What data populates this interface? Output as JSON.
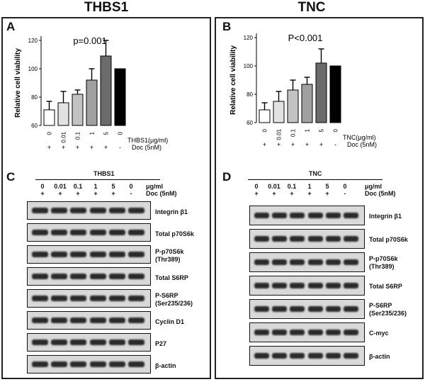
{
  "headers": {
    "left": "THBS1",
    "right": "TNC"
  },
  "panel_labels": {
    "A": "A",
    "B": "B",
    "C": "C",
    "D": "D"
  },
  "chart_data": [
    {
      "type": "bar",
      "panel": "A",
      "annotation": "p=0.001",
      "ylabel": "Relative cell viability",
      "ylim": [
        60,
        120
      ],
      "yticks": [
        "60",
        "80",
        "100",
        "120"
      ],
      "categories": [
        "0",
        "0.01",
        "0.1",
        "1",
        "5",
        "0"
      ],
      "values": [
        71,
        76,
        82,
        92,
        109,
        100
      ],
      "errors": [
        6,
        8,
        3,
        8,
        11,
        0
      ],
      "colors": [
        "#ffffff",
        "#e2e2e2",
        "#c2c2c2",
        "#a0a0a0",
        "#6b6b6b",
        "#000000"
      ],
      "row1_label": "THBS1(μg/ml)",
      "row2_label": "Doc (5nM)",
      "row2_signs": [
        "+",
        "+",
        "+",
        "+",
        "+",
        "-"
      ]
    },
    {
      "type": "bar",
      "panel": "B",
      "annotation": "P<0.001",
      "ylabel": "Relative cell viability",
      "ylim": [
        60,
        120
      ],
      "yticks": [
        "60",
        "80",
        "100",
        "120"
      ],
      "categories": [
        "0",
        "0.01",
        "0.1",
        "1",
        "5",
        "0"
      ],
      "values": [
        69,
        75,
        83,
        87,
        102,
        100
      ],
      "errors": [
        5,
        7,
        7,
        5,
        10,
        0
      ],
      "colors": [
        "#ffffff",
        "#e2e2e2",
        "#c2c2c2",
        "#a0a0a0",
        "#6b6b6b",
        "#000000"
      ],
      "row1_label": "TNC(μg/ml)",
      "row2_label": "Doc (5nM)",
      "row2_signs": [
        "+",
        "+",
        "+",
        "+",
        "+",
        "-"
      ]
    }
  ],
  "blots": {
    "C": {
      "title": "THBS1",
      "conc": [
        "0",
        "0.01",
        "0.1",
        "1",
        "5",
        "0"
      ],
      "unit": "μg/ml",
      "signs": [
        "+",
        "+",
        "+",
        "+",
        "+",
        "-"
      ],
      "doc": "Doc (5nM)",
      "rows": [
        {
          "label": "Integrin β1",
          "sublabel": ""
        },
        {
          "label": "Total p70S6k",
          "sublabel": ""
        },
        {
          "label": "P-p70S6k",
          "sublabel": "(Thr389)"
        },
        {
          "label": "Total S6RP",
          "sublabel": ""
        },
        {
          "label": "P-S6RP",
          "sublabel": "(Ser235/236)"
        },
        {
          "label": "Cyclin D1",
          "sublabel": ""
        },
        {
          "label": "P27",
          "sublabel": ""
        },
        {
          "label": "β-actin",
          "sublabel": ""
        }
      ]
    },
    "D": {
      "title": "TNC",
      "conc": [
        "0",
        "0.01",
        "0.1",
        "1",
        "5",
        "0"
      ],
      "unit": "μg/ml",
      "signs": [
        "+",
        "+",
        "+",
        "+",
        "+",
        "-"
      ],
      "doc": "Doc (5nM)",
      "rows": [
        {
          "label": "Integrin β1",
          "sublabel": ""
        },
        {
          "label": "Total p70S6k",
          "sublabel": ""
        },
        {
          "label": "P-p70S6k",
          "sublabel": "(Thr389)"
        },
        {
          "label": "Total S6RP",
          "sublabel": ""
        },
        {
          "label": "P-S6RP",
          "sublabel": "(Ser235/236)"
        },
        {
          "label": "C-myc",
          "sublabel": ""
        },
        {
          "label": "β-actin",
          "sublabel": ""
        }
      ]
    }
  }
}
